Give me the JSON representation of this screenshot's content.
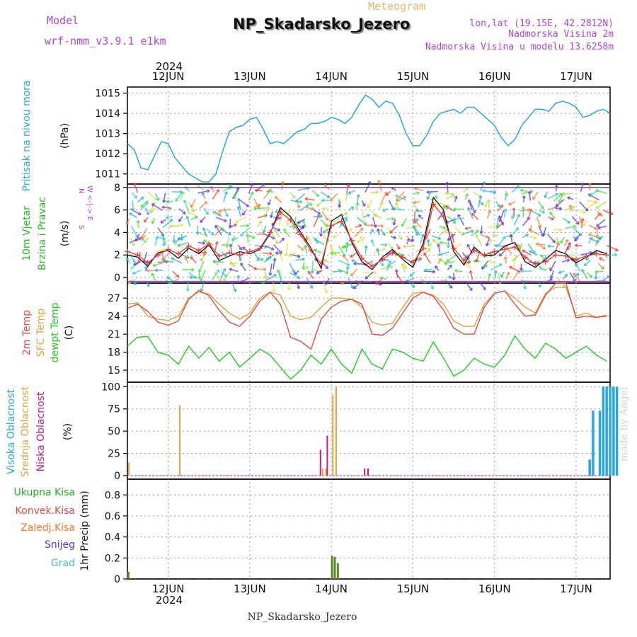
{
  "header": {
    "model_label": "Model",
    "model_name": "wrf-nmm_v3.9.1 e1km",
    "product": "Meteogram",
    "station": "NP_Skadarsko_Jezero",
    "coords": "lon,lat (19.15E, 42.2812N)",
    "height": "Nadmorska Visina 2m",
    "model_height": "Nadmorska Visina u modelu 13.6258m"
  },
  "footer": {
    "station": "NP_Skadarsko_Jezero"
  },
  "credit": "made by Angel",
  "x_axis": {
    "year": "2024",
    "days": [
      "12JUN",
      "13JUN",
      "14JUN",
      "15JUN",
      "16JUN",
      "17JUN"
    ]
  },
  "wind_axis_note": {
    "row1": "N",
    "row2": "W <-|-> E",
    "row3": "S"
  },
  "colors": {
    "pressure": "#2aa7e0",
    "wind_lbl": "#1fbf1f",
    "temp2m": "#e8484a",
    "sfc": "#e0a43c",
    "dewpt": "#1fcf1f",
    "high_cloud": "#2aa7e0",
    "mid_cloud": "#e0a43c",
    "low_cloud": "#d01a80",
    "total_precip": "#1fb31f",
    "conv_precip": "#e8484a",
    "grid_precip": "#f07a30",
    "snow": "#4a3ee0",
    "graupel": "#3ec0c0"
  },
  "panels": {
    "pressure": {
      "title": "Pritisak na nivou mora",
      "unit": "(hPa)"
    },
    "wind": {
      "title1": "10m Vjetar",
      "title2": "Brzina i Pravac",
      "unit": "(m/s)"
    },
    "temp": {
      "title1": "2m Temp",
      "title2": "SFC Temp",
      "title3": "dewpt Temp",
      "unit": "(C)"
    },
    "cloud": {
      "title1": "Visoka Oblacnost",
      "title2": "Srednja Oblacnost",
      "title3": "Niska Oblacnost",
      "unit": "(%)"
    },
    "precip": {
      "unit": "1hr Precip (mm)",
      "legend": [
        "Ukupna Kisa",
        "Konvek.Kisa",
        "Zaledj.Kisa",
        "Snijeg",
        "Grad"
      ]
    }
  },
  "chart_data": {
    "type": "line",
    "x_unit": "hours since 2024-06-11 12:00",
    "x_range": [
      0,
      142
    ],
    "day_ticks_hours": [
      12,
      36,
      60,
      84,
      108,
      132
    ],
    "pressure": {
      "ylim": [
        1010.5,
        1015.3
      ],
      "yticks": [
        1011,
        1012,
        1013,
        1014,
        1015
      ],
      "x": [
        0,
        2,
        4,
        6,
        8,
        10,
        12,
        14,
        16,
        18,
        20,
        22,
        24,
        26,
        28,
        30,
        32,
        34,
        36,
        38,
        40,
        42,
        44,
        46,
        48,
        50,
        52,
        54,
        56,
        58,
        60,
        62,
        64,
        66,
        68,
        70,
        72,
        74,
        76,
        78,
        80,
        82,
        84,
        86,
        88,
        90,
        92,
        94,
        96,
        98,
        100,
        102,
        104,
        106,
        108,
        110,
        112,
        114,
        116,
        118,
        120,
        122,
        124,
        126,
        128,
        130,
        132,
        134,
        136,
        138,
        140,
        142
      ],
      "values": [
        1012.5,
        1012.2,
        1011.3,
        1011.2,
        1011.9,
        1012.6,
        1012.5,
        1011.8,
        1011.4,
        1011.0,
        1010.8,
        1010.6,
        1010.6,
        1011.0,
        1012.1,
        1013.1,
        1013.3,
        1013.4,
        1013.7,
        1013.8,
        1013.2,
        1012.5,
        1012.6,
        1012.5,
        1012.8,
        1013.1,
        1013.2,
        1013.5,
        1013.5,
        1013.6,
        1013.8,
        1013.7,
        1013.5,
        1013.8,
        1014.4,
        1014.9,
        1014.7,
        1014.3,
        1014.6,
        1014.5,
        1013.9,
        1013.0,
        1012.4,
        1012.4,
        1012.9,
        1013.6,
        1014.0,
        1014.1,
        1014.2,
        1014.0,
        1014.3,
        1014.3,
        1014.0,
        1013.7,
        1013.4,
        1012.8,
        1012.4,
        1012.7,
        1013.4,
        1013.8,
        1014.2,
        1014.2,
        1014.1,
        1014.5,
        1014.6,
        1014.5,
        1014.3,
        1013.8,
        1013.9,
        1014.1,
        1014.2,
        1014.0
      ]
    },
    "wind": {
      "ylim": [
        -0.5,
        8.3
      ],
      "yticks": [
        0,
        2,
        4,
        6,
        8
      ],
      "x": [
        0,
        3,
        6,
        9,
        12,
        15,
        18,
        21,
        24,
        27,
        30,
        33,
        36,
        39,
        42,
        45,
        48,
        51,
        54,
        57,
        60,
        63,
        66,
        69,
        72,
        75,
        78,
        81,
        84,
        87,
        90,
        93,
        96,
        99,
        102,
        105,
        108,
        111,
        114,
        117,
        120,
        123,
        126,
        129,
        132,
        135,
        138,
        141
      ],
      "speed": [
        2.0,
        1.8,
        1.0,
        2.2,
        2.4,
        1.7,
        2.6,
        2.1,
        2.9,
        1.5,
        1.9,
        2.3,
        2.1,
        2.5,
        3.9,
        6.2,
        5.4,
        4.0,
        2.6,
        0.8,
        5.0,
        5.6,
        3.1,
        1.4,
        0.7,
        1.8,
        2.5,
        1.6,
        0.9,
        3.0,
        7.1,
        6.0,
        2.3,
        1.1,
        2.7,
        1.9,
        2.0,
        2.8,
        3.1,
        1.4,
        0.9,
        1.6,
        2.4,
        2.1,
        1.3,
        1.8,
        2.4,
        2.1
      ],
      "gust": [
        2.3,
        2.0,
        1.3,
        2.0,
        2.5,
        2.1,
        2.8,
        2.4,
        3.0,
        1.9,
        2.2,
        2.0,
        2.3,
        2.6,
        4.0,
        5.8,
        5.1,
        3.8,
        2.4,
        1.2,
        4.6,
        5.0,
        3.3,
        1.7,
        1.0,
        1.6,
        2.2,
        1.8,
        1.3,
        2.6,
        6.5,
        5.4,
        2.6,
        1.5,
        2.4,
        2.0,
        2.3,
        2.5,
        2.7,
        1.8,
        1.2,
        1.4,
        2.0,
        1.9,
        1.6,
        1.9,
        2.1,
        2.0
      ]
    },
    "temperature": {
      "ylim": [
        13,
        29.5
      ],
      "yticks": [
        15,
        18,
        21,
        24,
        27
      ],
      "x": [
        0,
        3,
        6,
        9,
        12,
        15,
        18,
        21,
        24,
        27,
        30,
        33,
        36,
        39,
        42,
        45,
        48,
        51,
        54,
        57,
        60,
        63,
        66,
        69,
        72,
        75,
        78,
        81,
        84,
        87,
        90,
        93,
        96,
        99,
        102,
        105,
        108,
        111,
        114,
        117,
        120,
        123,
        126,
        129,
        132,
        135,
        138,
        141
      ],
      "temp_2m": [
        25.3,
        26.0,
        24.8,
        23.0,
        22.5,
        23.2,
        26.8,
        28.3,
        27.4,
        25.0,
        23.0,
        22.3,
        24.0,
        26.5,
        28.0,
        26.0,
        20.5,
        19.8,
        18.5,
        23.5,
        25.5,
        26.5,
        26.8,
        26.0,
        21.0,
        20.8,
        22.0,
        24.5,
        27.0,
        28.0,
        27.3,
        25.0,
        22.0,
        21.0,
        21.0,
        25.5,
        27.8,
        28.2,
        26.0,
        24.0,
        24.2,
        27.5,
        29.5,
        29.5,
        23.7,
        24.0,
        23.8,
        24.0
      ],
      "sfc_temp": [
        26.0,
        26.2,
        24.0,
        23.5,
        23.3,
        24.0,
        27.0,
        28.0,
        27.7,
        26.0,
        24.5,
        23.5,
        24.5,
        27.0,
        28.0,
        27.5,
        24.0,
        23.4,
        23.8,
        25.5,
        27.0,
        27.0,
        26.8,
        25.5,
        23.0,
        22.5,
        22.8,
        25.5,
        27.8,
        28.0,
        27.5,
        26.0,
        23.2,
        22.3,
        22.3,
        26.0,
        27.8,
        28.2,
        27.0,
        25.5,
        24.5,
        27.8,
        28.8,
        28.8,
        24.0,
        24.5,
        23.8,
        24.2
      ],
      "dewpoint": [
        19.0,
        20.5,
        20.6,
        18.0,
        17.5,
        16.0,
        19.0,
        17.0,
        18.8,
        16.5,
        18.0,
        15.5,
        17.0,
        18.5,
        17.5,
        15.5,
        13.5,
        15.0,
        17.5,
        16.0,
        18.5,
        16.0,
        14.5,
        18.5,
        16.0,
        15.2,
        18.5,
        18.0,
        17.0,
        16.5,
        19.7,
        17.0,
        14.0,
        15.0,
        17.0,
        16.0,
        15.5,
        17.5,
        20.7,
        18.5,
        17.0,
        19.5,
        18.5,
        17.0,
        18.0,
        19.0,
        17.5,
        16.5
      ]
    },
    "cloud_cover": {
      "ylim": [
        -4,
        105
      ],
      "yticks": [
        0,
        25,
        50,
        75,
        100
      ],
      "high": [
        [
          136,
          18
        ],
        [
          137,
          73
        ],
        [
          139,
          73
        ],
        [
          140,
          100
        ],
        [
          141,
          100
        ],
        [
          142,
          100
        ],
        [
          143,
          100
        ],
        [
          144,
          100
        ]
      ],
      "mid": [
        [
          0,
          15
        ],
        [
          15,
          79
        ],
        [
          57,
          8
        ],
        [
          58,
          8
        ],
        [
          60,
          91
        ],
        [
          61,
          100
        ]
      ],
      "low": [
        [
          57,
          29
        ],
        [
          59,
          45
        ],
        [
          70,
          8
        ],
        [
          71,
          8
        ]
      ]
    },
    "precip_1hr": {
      "ylim": [
        0,
        0.95
      ],
      "yticks": [
        0,
        0.2,
        0.4,
        0.6,
        0.8
      ],
      "total": [
        [
          0.3,
          0.07
        ],
        [
          60.2,
          0.22
        ],
        [
          61.0,
          0.21
        ],
        [
          61.9,
          0.15
        ]
      ]
    }
  }
}
